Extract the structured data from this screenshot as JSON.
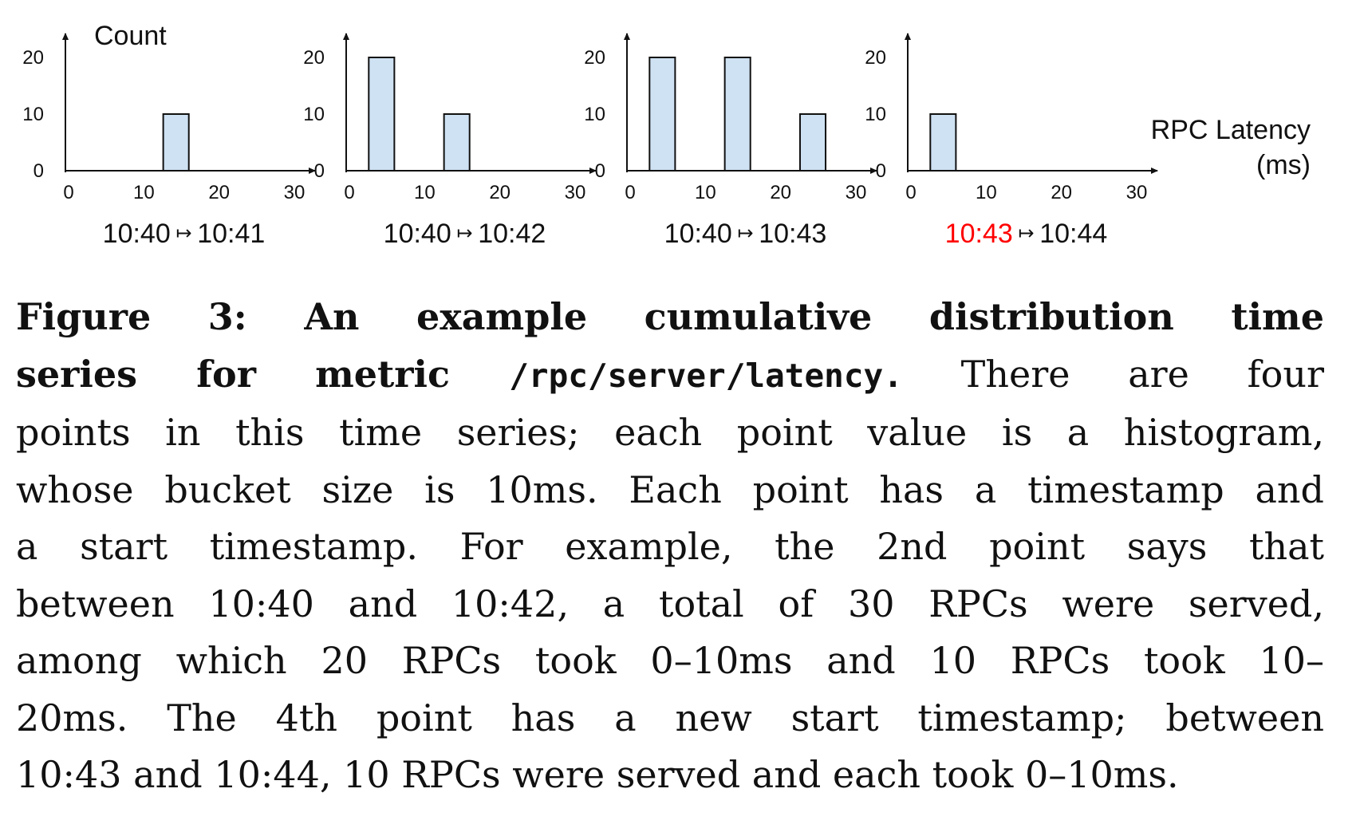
{
  "chart_data": {
    "type": "bar",
    "y_axis_title": "Count",
    "x_axis_title_line1": "RPC Latency",
    "x_axis_title_line2": "(ms)",
    "y_ticks": [
      "0",
      "10",
      "20"
    ],
    "x_ticks": [
      "0",
      "10",
      "20",
      "30"
    ],
    "xlim": [
      0,
      30
    ],
    "ylim": [
      0,
      20
    ],
    "bucket_size": 10,
    "bar_color": "#cfe2f3",
    "bar_stroke": "#111111",
    "highlight_color": "#ff0000",
    "arrow_glyph": "↦",
    "panels": [
      {
        "start": "10:40",
        "end": "10:41",
        "start_highlight": false,
        "buckets": [
          {
            "x0": 0,
            "x1": 10,
            "count": 0
          },
          {
            "x0": 10,
            "x1": 20,
            "count": 10
          },
          {
            "x0": 20,
            "x1": 30,
            "count": 0
          }
        ]
      },
      {
        "start": "10:40",
        "end": "10:42",
        "start_highlight": false,
        "buckets": [
          {
            "x0": 0,
            "x1": 10,
            "count": 20
          },
          {
            "x0": 10,
            "x1": 20,
            "count": 10
          },
          {
            "x0": 20,
            "x1": 30,
            "count": 0
          }
        ]
      },
      {
        "start": "10:40",
        "end": "10:43",
        "start_highlight": false,
        "buckets": [
          {
            "x0": 0,
            "x1": 10,
            "count": 20
          },
          {
            "x0": 10,
            "x1": 20,
            "count": 20
          },
          {
            "x0": 20,
            "x1": 30,
            "count": 10
          }
        ]
      },
      {
        "start": "10:43",
        "end": "10:44",
        "start_highlight": true,
        "buckets": [
          {
            "x0": 0,
            "x1": 10,
            "count": 10
          },
          {
            "x0": 10,
            "x1": 20,
            "count": 0
          },
          {
            "x0": 20,
            "x1": 30,
            "count": 0
          }
        ]
      }
    ]
  },
  "caption": {
    "lead": "Figure 3:  An example cumulative distribution time series for metric",
    "lead_parts": [
      "Figure 3:  An example cumulative distribution time",
      "series for metric "
    ],
    "metric": "/rpc/server/latency.",
    "lines": [
      " There are four",
      "points in this time series; each point value is a histogram,",
      "whose bucket size is 10ms. Each point has a timestamp and",
      "a start timestamp.  For example, the 2nd point says that",
      "between 10:40 and 10:42, a total of 30 RPCs were served,",
      "among which 20 RPCs took 0–10ms and 10 RPCs took 10–",
      "20ms.  The 4th point has a new start timestamp; between",
      "10:43 and 10:44, 10 RPCs were served and each took 0–10ms."
    ]
  }
}
